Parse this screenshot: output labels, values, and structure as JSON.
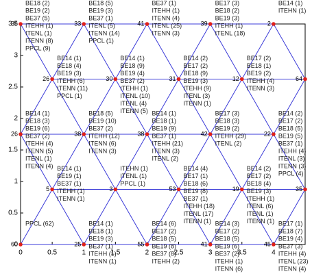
{
  "chart_data": {
    "type": "mesh",
    "xlim": [
      0,
      4.5
    ],
    "ylim": [
      0,
      3.5
    ],
    "xticks": [
      0,
      0.5,
      1,
      1.5,
      2,
      2.5,
      3,
      3.5,
      4
    ],
    "yticks": [
      0,
      0.5,
      1,
      1.5,
      2,
      2.5,
      3,
      3.5
    ],
    "edge_color": "#3a3ad8",
    "node_color": "#e0201a",
    "nodes": [
      {
        "label": "36",
        "x": 0,
        "y": 3.5,
        "notes": [
          "BE18 (2)",
          "BE19 (2)",
          "BE37 (5)",
          "ITEHH (1)",
          "ITENL (1)",
          "ITENN (8)",
          "PPCL (9)"
        ]
      },
      {
        "label": "33",
        "x": 1,
        "y": 3.5,
        "notes": [
          "BE18 (5)",
          "BE19 (3)",
          "BE37 (1)",
          "ITENL (5)",
          "ITENN (14)",
          "PPCL (1)"
        ]
      },
      {
        "label": "41",
        "x": 2,
        "y": 3.5,
        "notes": [
          "BE37 (1)",
          "ITEHH (1)",
          "ITENN (4)",
          "ITENL (25)",
          "ITENN (3)"
        ]
      },
      {
        "label": "39",
        "x": 3,
        "y": 3.5,
        "notes": [
          "BE17 (3)",
          "BE18 (2)",
          "BE19 (3)",
          "ITEHH (1)",
          "ITENL (18)"
        ]
      },
      {
        "label": "2",
        "x": 4,
        "y": 3.5,
        "notes": [
          "BE14 (1)",
          "ITEHN (1)"
        ]
      },
      {
        "label": "26",
        "x": 0.5,
        "y": 2.625,
        "notes": [
          "BE14 (1)",
          "BE18 (4)",
          "BE19 (3)",
          "ITEHH (6)",
          "ITENN (11)",
          "PPCL (1)"
        ]
      },
      {
        "label": "30",
        "x": 1.5,
        "y": 2.625,
        "notes": [
          "BE14 (1)",
          "BE18 (9)",
          "BE19 (4)",
          "BE37 (2)",
          "ITEHH (1)",
          "ITENL (10)",
          "ITENL (4)",
          "ITENN (5)"
        ]
      },
      {
        "label": "31",
        "x": 2.5,
        "y": 2.625,
        "notes": [
          "BE14 (2)",
          "BE17 (2)",
          "BE18 (9)",
          "BE19 (3)",
          "ITEHH (9)",
          "ITENL (3)",
          "ITENN (1)"
        ]
      },
      {
        "label": "12",
        "x": 3.5,
        "y": 2.625,
        "notes": [
          "BE17 (2)",
          "BE18 (1)",
          "BE19 (2)",
          "ITEHH (4)",
          "ITENN (3)"
        ]
      },
      {
        "label": "64",
        "x": 4.5,
        "y": 2.625,
        "notes": []
      },
      {
        "label": "26",
        "x": 0,
        "y": 1.75,
        "notes": [
          "BE14 (1)",
          "BE18 (3)",
          "BE19 (6)",
          "BE37 (2)",
          "ITEHH (4)",
          "ITENN (5)",
          "ITENL (1)",
          "ITENN (4)"
        ]
      },
      {
        "label": "38",
        "x": 1,
        "y": 1.75,
        "notes": [
          "BE18 (5)",
          "BE19 (10)",
          "BE37 (2)",
          "ITEHH (12)",
          "ITENN (6)",
          "ITENN (3)"
        ]
      },
      {
        "label": "38",
        "x": 2,
        "y": 1.75,
        "notes": [
          "BE14 (1)",
          "BE18 (1)",
          "BE19 (9)",
          "BE37 (1)",
          "ITEHH (21)",
          "ITENN (3)",
          "ITENL (2)"
        ]
      },
      {
        "label": "42",
        "x": 3,
        "y": 1.75,
        "notes": [
          "BE17 (3)",
          "BE18 (3)",
          "BE19 (2)",
          "ITEHH (29)",
          "ITENL (2)"
        ]
      },
      {
        "label": "22",
        "x": 4,
        "y": 1.75,
        "notes": [
          "BE14 (2)",
          "BE17 (2)",
          "BE18 (5)",
          "BE19 (5)",
          "BE37 (1)",
          "ITEHH (4)",
          "ITENL (3)",
          "ITENN (3)",
          "PPCL (4)"
        ]
      },
      {
        "label": "5",
        "x": 0.5,
        "y": 0.875,
        "notes": [
          "BE14 (1)",
          "BE19 (1)",
          "BE37 (1)",
          "ITEHH (1)",
          "ITENN (1)"
        ]
      },
      {
        "label": "3",
        "x": 1.5,
        "y": 0.875,
        "notes": [
          "ITEHN (1)",
          "ITENL (1)",
          "PPCL (1)"
        ]
      },
      {
        "label": "53",
        "x": 2.5,
        "y": 0.875,
        "notes": [
          "BE14 (4)",
          "BE17 (1)",
          "BE18 (6)",
          "BE19 (8)",
          "BE37 (1)",
          "ITEHH (18)",
          "ITENL (17)",
          "ITENN (1)"
        ]
      },
      {
        "label": "19",
        "x": 3.5,
        "y": 0.875,
        "notes": [
          "BE14 (2)",
          "BE17 (2)",
          "BE18 (4)",
          "BE19 (3)",
          "ITEHH (1)",
          "ITENL (6)",
          "ITENL (1)",
          "ITENN (1)"
        ]
      },
      {
        "label": "35",
        "x": 4.5,
        "y": 0.875,
        "notes": []
      },
      {
        "label": "60",
        "x": 0,
        "y": 0,
        "notes": [
          "PPCL (62)"
        ]
      },
      {
        "label": "25",
        "x": 1,
        "y": 0,
        "notes": [
          "BE14 (1)",
          "BE18 (1)",
          "BE19 (3)",
          "BE37 (1)",
          "ITEHH (1)",
          "ITENN (1)"
        ]
      },
      {
        "label": "55",
        "x": 2,
        "y": 0,
        "notes": [
          "BE14 (6)",
          "BE17 (2)",
          "BE18 (5)",
          "BE19 (8)",
          "BE37 (8)",
          "ITEHH (2)"
        ]
      },
      {
        "label": "41",
        "x": 3,
        "y": 0,
        "notes": [
          "BE14 (3)",
          "BE17 (2)",
          "BE18 (5)",
          "BE19 (6)",
          "BE37 (2)",
          "ITEHH (1)",
          "ITENN (6)"
        ]
      },
      {
        "label": "45",
        "x": 4,
        "y": 0,
        "notes": [
          "BE17 (1)",
          "BE18 (7)",
          "BE19 (4)",
          "BE37 (3)",
          "ITEHH (4)",
          "ITENL (23)",
          "ITENN (4)"
        ]
      }
    ]
  }
}
